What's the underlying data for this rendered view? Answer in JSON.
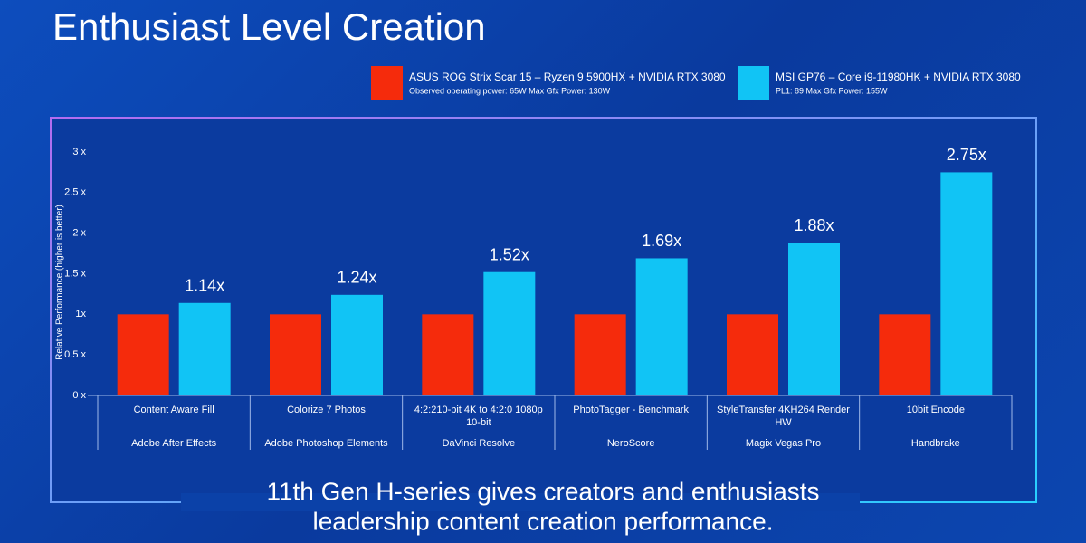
{
  "chart_data": {
    "type": "bar",
    "title": "Enthusiast Level Creation",
    "y_label": "Relative Performance (higher is better)",
    "categories": [
      "Content Aware Fill",
      "Colorize 7 Photos",
      "4:2:210-bit 4K to 4:2:0 1080p 10-bit",
      "PhotoTagger - Benchmark",
      "StyleTransfer 4KH264 Render HW",
      "10bit Encode"
    ],
    "subcategories": [
      "Adobe After Effects",
      "Adobe Photoshop Elements",
      "DaVinci Resolve",
      "NeroScore",
      "Magix Vegas Pro",
      "Handbrake"
    ],
    "series": [
      {
        "name": "ASUS ROG Strix Scar 15 – Ryzen 9 5900HX + NVIDIA RTX 3080",
        "description": "Observed operating power: 65W  Max Gfx Power: 130W",
        "color": "#f52b0c",
        "values": [
          1,
          1,
          1,
          1,
          1,
          1
        ]
      },
      {
        "name": "MSI GP76 – Core i9-11980HK + NVIDIA RTX 3080",
        "description": "PL1: 89 Max Gfx Power: 155W",
        "color": "#11c4f5",
        "values": [
          1.14,
          1.24,
          1.52,
          1.69,
          1.88,
          2.75
        ],
        "value_labels": [
          "1.14x",
          "1.24x",
          "1.52x",
          "1.69x",
          "1.88x",
          "2.75x"
        ]
      }
    ],
    "ylim": [
      0,
      3
    ],
    "yticks": [
      {
        "value": 0,
        "label": "0 x"
      },
      {
        "value": 0.5,
        "label": "0.5 x"
      },
      {
        "value": 1,
        "label": "1x"
      },
      {
        "value": 1.5,
        "label": "1.5 x"
      },
      {
        "value": 2,
        "label": "2 x"
      },
      {
        "value": 2.5,
        "label": "2.5 x"
      },
      {
        "value": 3,
        "label": "3 x"
      }
    ],
    "footer": [
      "11th Gen H-series gives creators and enthusiasts",
      "leadership content creation performance."
    ]
  }
}
